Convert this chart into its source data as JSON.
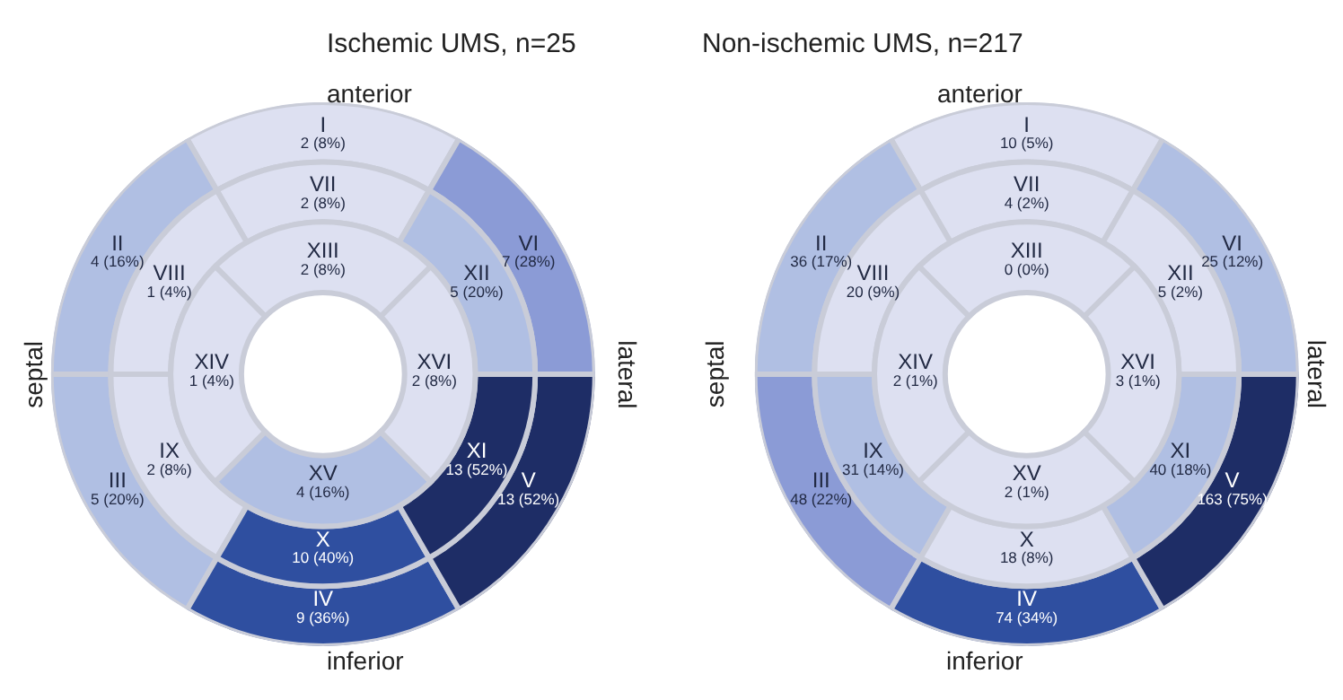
{
  "chart_data": [
    {
      "type": "other",
      "title": "Ischemic UMS, n=25",
      "annotations": [
        "anterior",
        "septal",
        "lateral",
        "inferior"
      ],
      "categories": [
        "I",
        "II",
        "III",
        "IV",
        "V",
        "VI",
        "VII",
        "VIII",
        "IX",
        "X",
        "XI",
        "XII",
        "XIII",
        "XIV",
        "XV",
        "XVI"
      ],
      "values": [
        2,
        4,
        5,
        9,
        13,
        7,
        2,
        1,
        2,
        10,
        13,
        5,
        2,
        1,
        4,
        2
      ],
      "value_labels": [
        "2 (8%)",
        "4 (16%)",
        "5 (20%)",
        "9 (36%)",
        "13 (52%)",
        "7 (28%)",
        "2 (8%)",
        "1 (4%)",
        "2 (8%)",
        "10 (40%)",
        "13 (52%)",
        "5 (20%)",
        "2 (8%)",
        "1 (4%)",
        "4 (16%)",
        "2 (8%)"
      ],
      "colors": [
        "#dde0f1",
        "#b0bfe3",
        "#b0bfe3",
        "#2f4fa0",
        "#1e2d66",
        "#8b9bd6",
        "#dde0f1",
        "#dde0f1",
        "#dde0f1",
        "#2f4fa0",
        "#1e2d66",
        "#b0bfe3",
        "#dde0f1",
        "#dde0f1",
        "#b0bfe3",
        "#dde0f1"
      ]
    },
    {
      "type": "other",
      "title": "Non-ischemic UMS, n=217",
      "annotations": [
        "anterior",
        "septal",
        "lateral",
        "inferior"
      ],
      "categories": [
        "I",
        "II",
        "III",
        "IV",
        "V",
        "VI",
        "VII",
        "VIII",
        "IX",
        "X",
        "XI",
        "XII",
        "XIII",
        "XIV",
        "XV",
        "XVI"
      ],
      "values": [
        10,
        36,
        48,
        74,
        163,
        25,
        4,
        20,
        31,
        18,
        40,
        5,
        0,
        2,
        2,
        3
      ],
      "value_labels": [
        "10 (5%)",
        "36 (17%)",
        "48 (22%)",
        "74 (34%)",
        "163 (75%)",
        "25 (12%)",
        "4 (2%)",
        "20 (9%)",
        "31 (14%)",
        "18 (8%)",
        "40 (18%)",
        "5 (2%)",
        "0 (0%)",
        "2 (1%)",
        "2 (1%)",
        "3 (1%)"
      ],
      "colors": [
        "#dde0f1",
        "#b0bfe3",
        "#8b9bd6",
        "#2f4fa0",
        "#1e2d66",
        "#b0bfe3",
        "#dde0f1",
        "#dde0f1",
        "#b0bfe3",
        "#dde0f1",
        "#b0bfe3",
        "#dde0f1",
        "#dde0f1",
        "#dde0f1",
        "#dde0f1",
        "#dde0f1"
      ]
    }
  ]
}
